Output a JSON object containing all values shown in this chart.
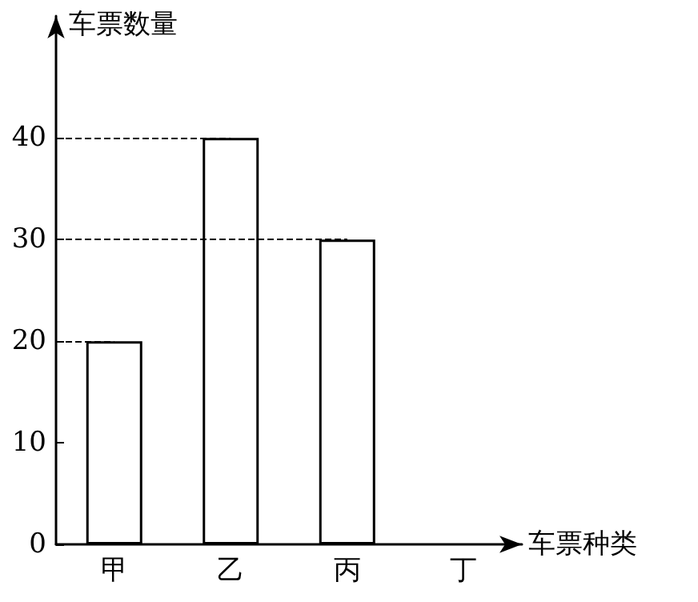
{
  "chart_data": {
    "type": "bar",
    "xlabel": "车票种类",
    "ylabel": "车票数量",
    "categories": [
      "甲",
      "乙",
      "丙",
      "丁"
    ],
    "values": [
      20,
      40,
      30,
      null
    ],
    "color": "#ffffff",
    "ylim": [
      0,
      52
    ],
    "yticks": [
      0,
      10,
      20,
      30,
      40
    ],
    "ref_lines": [
      {
        "axis": "y",
        "value": 40,
        "label": null,
        "color": "#000000",
        "line_style": "dashed"
      },
      {
        "axis": "y",
        "value": 30,
        "label": null,
        "color": "#000000",
        "line_style": "dashed"
      },
      {
        "axis": "y",
        "value": 20,
        "label": null,
        "color": "#000000",
        "line_style": "dashed"
      }
    ]
  }
}
